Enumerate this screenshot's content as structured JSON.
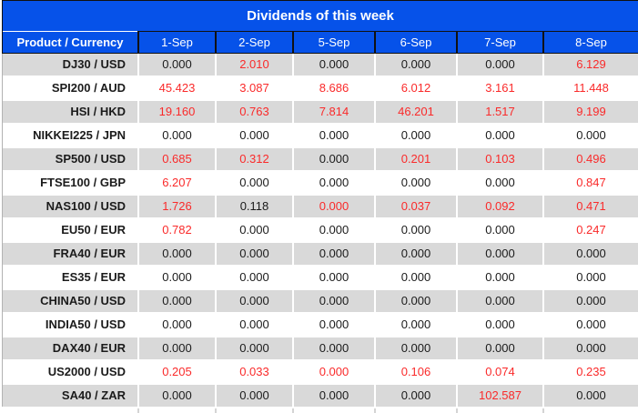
{
  "colors": {
    "header_blue": "#0652E9",
    "header_text": "#FFFFFF",
    "row_gray": "#D9D9D9",
    "value_red": "#FA2A2A",
    "text_black": "#1B1B1B",
    "grid_dark": "#111111"
  },
  "table": {
    "title": "Dividends of this week",
    "columns": [
      "Product / Currency",
      "1-Sep",
      "2-Sep",
      "5-Sep",
      "6-Sep",
      "7-Sep",
      "8-Sep"
    ],
    "rows": [
      {
        "product": "DJ30 / USD",
        "values": [
          "0.000",
          "2.010",
          "0.000",
          "0.000",
          "0.000",
          "6.129"
        ],
        "red": [
          false,
          true,
          false,
          false,
          false,
          true
        ]
      },
      {
        "product": "SPI200 / AUD",
        "values": [
          "45.423",
          "3.087",
          "8.686",
          "6.012",
          "3.161",
          "11.448"
        ],
        "red": [
          true,
          true,
          true,
          true,
          true,
          true
        ]
      },
      {
        "product": "HSI / HKD",
        "values": [
          "19.160",
          "0.763",
          "7.814",
          "46.201",
          "1.517",
          "9.199"
        ],
        "red": [
          true,
          true,
          true,
          true,
          true,
          true
        ]
      },
      {
        "product": "NIKKEI225 / JPN",
        "values": [
          "0.000",
          "0.000",
          "0.000",
          "0.000",
          "0.000",
          "0.000"
        ],
        "red": [
          false,
          false,
          false,
          false,
          false,
          false
        ]
      },
      {
        "product": "SP500 / USD",
        "values": [
          "0.685",
          "0.312",
          "0.000",
          "0.201",
          "0.103",
          "0.496"
        ],
        "red": [
          true,
          true,
          false,
          true,
          true,
          true
        ]
      },
      {
        "product": "FTSE100 / GBP",
        "values": [
          "6.207",
          "0.000",
          "0.000",
          "0.000",
          "0.000",
          "0.847"
        ],
        "red": [
          true,
          false,
          false,
          false,
          false,
          true
        ]
      },
      {
        "product": "NAS100 / USD",
        "values": [
          "1.726",
          "0.118",
          "0.000",
          "0.037",
          "0.092",
          "0.471"
        ],
        "red": [
          true,
          false,
          true,
          true,
          true,
          true
        ]
      },
      {
        "product": "EU50 / EUR",
        "values": [
          "0.782",
          "0.000",
          "0.000",
          "0.000",
          "0.000",
          "0.247"
        ],
        "red": [
          true,
          false,
          false,
          false,
          false,
          true
        ]
      },
      {
        "product": "FRA40 / EUR",
        "values": [
          "0.000",
          "0.000",
          "0.000",
          "0.000",
          "0.000",
          "0.000"
        ],
        "red": [
          false,
          false,
          false,
          false,
          false,
          false
        ]
      },
      {
        "product": "ES35 / EUR",
        "values": [
          "0.000",
          "0.000",
          "0.000",
          "0.000",
          "0.000",
          "0.000"
        ],
        "red": [
          false,
          false,
          false,
          false,
          false,
          false
        ]
      },
      {
        "product": "CHINA50 / USD",
        "values": [
          "0.000",
          "0.000",
          "0.000",
          "0.000",
          "0.000",
          "0.000"
        ],
        "red": [
          false,
          false,
          false,
          false,
          false,
          false
        ]
      },
      {
        "product": "INDIA50 / USD",
        "values": [
          "0.000",
          "0.000",
          "0.000",
          "0.000",
          "0.000",
          "0.000"
        ],
        "red": [
          false,
          false,
          false,
          false,
          false,
          false
        ]
      },
      {
        "product": "DAX40 / EUR",
        "values": [
          "0.000",
          "0.000",
          "0.000",
          "0.000",
          "0.000",
          "0.000"
        ],
        "red": [
          false,
          false,
          false,
          false,
          false,
          false
        ]
      },
      {
        "product": "US2000 / USD",
        "values": [
          "0.205",
          "0.033",
          "0.000",
          "0.106",
          "0.074",
          "0.235"
        ],
        "red": [
          true,
          true,
          true,
          true,
          true,
          true
        ]
      },
      {
        "product": "SA40 / ZAR",
        "values": [
          "0.000",
          "0.000",
          "0.000",
          "0.000",
          "102.587",
          "0.000"
        ],
        "red": [
          false,
          false,
          false,
          false,
          true,
          false
        ]
      }
    ]
  }
}
